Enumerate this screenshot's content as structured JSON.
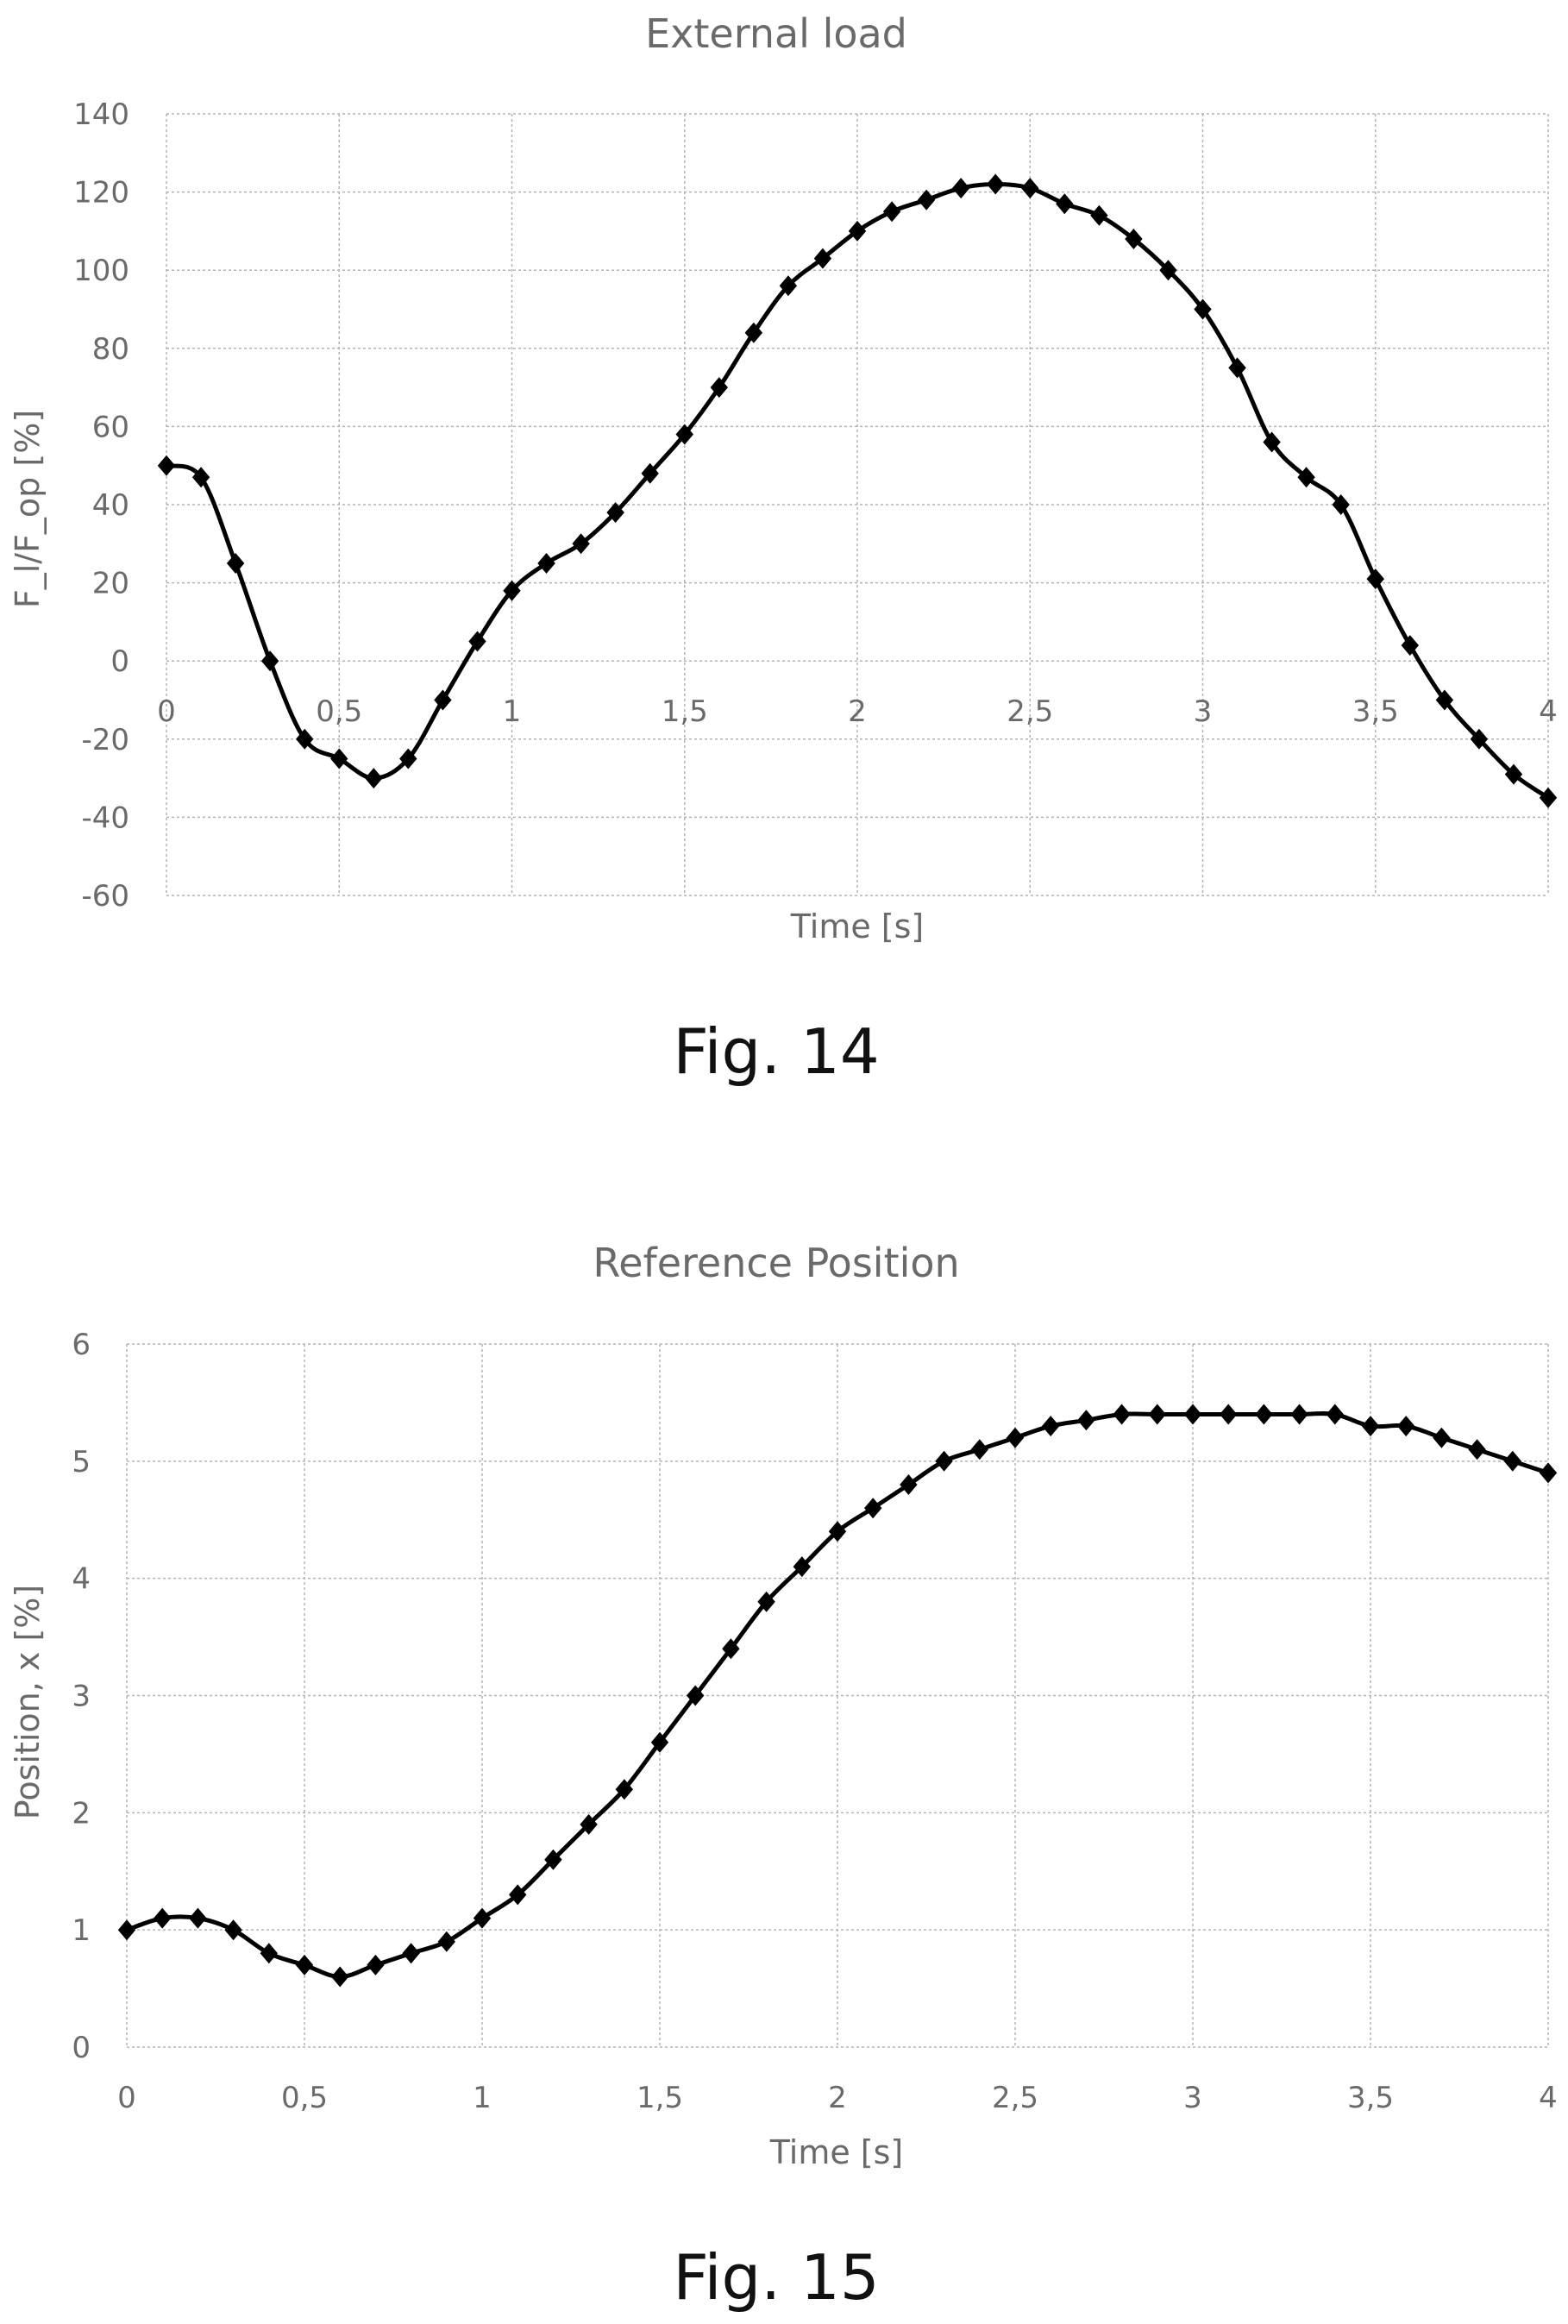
{
  "figures": [
    {
      "caption": "Fig. 14"
    },
    {
      "caption": "Fig. 15"
    }
  ],
  "chart_data": [
    {
      "type": "line",
      "title": "External load",
      "xlabel": "Time [s]",
      "ylabel": "F_l/F_op [%]",
      "xlim": [
        0,
        4
      ],
      "ylim": [
        -60,
        140
      ],
      "x_ticks": [
        0,
        0.5,
        1,
        1.5,
        2,
        2.5,
        3,
        3.5,
        4
      ],
      "x_tick_labels": [
        "0",
        "0,5",
        "1",
        "1,5",
        "2",
        "2,5",
        "3",
        "3,5",
        "4"
      ],
      "y_ticks": [
        -60,
        -40,
        -20,
        0,
        20,
        40,
        60,
        80,
        100,
        120,
        140
      ],
      "y_tick_labels": [
        "-60",
        "-40",
        "-20",
        "0",
        "20",
        "40",
        "60",
        "80",
        "100",
        "120",
        "140"
      ],
      "x_axis_at_y": 0,
      "grid": true,
      "marker": "diamond",
      "series": [
        {
          "x": [
            0,
            0.1,
            0.2,
            0.3,
            0.4,
            0.5,
            0.6,
            0.7,
            0.8,
            0.9,
            1.0,
            1.1,
            1.2,
            1.3,
            1.4,
            1.5,
            1.6,
            1.7,
            1.8,
            1.9,
            2.0,
            2.1,
            2.2,
            2.3,
            2.4,
            2.5,
            2.6,
            2.7,
            2.8,
            2.9,
            3.0,
            3.1,
            3.2,
            3.3,
            3.4,
            3.5,
            3.6,
            3.7,
            3.8,
            3.9,
            4.0
          ],
          "values": [
            50,
            47,
            25,
            0,
            -20,
            -25,
            -30,
            -25,
            -10,
            5,
            18,
            25,
            30,
            38,
            48,
            58,
            70,
            84,
            96,
            103,
            110,
            115,
            118,
            121,
            122,
            121,
            117,
            114,
            108,
            100,
            90,
            75,
            56,
            47,
            40,
            21,
            4,
            -10,
            -20,
            -29,
            -35
          ]
        }
      ]
    },
    {
      "type": "line",
      "title": "Reference Position",
      "xlabel": "Time [s]",
      "ylabel": "Position, x [%]",
      "xlim": [
        0,
        4
      ],
      "ylim": [
        0,
        6
      ],
      "x_ticks": [
        0,
        0.5,
        1,
        1.5,
        2,
        2.5,
        3,
        3.5,
        4
      ],
      "x_tick_labels": [
        "0",
        "0,5",
        "1",
        "1,5",
        "2",
        "2,5",
        "3",
        "3,5",
        "4"
      ],
      "y_ticks": [
        0,
        1,
        2,
        3,
        4,
        5,
        6
      ],
      "y_tick_labels": [
        "0",
        "1",
        "2",
        "3",
        "4",
        "5",
        "6"
      ],
      "grid": true,
      "marker": "diamond",
      "series": [
        {
          "x": [
            0,
            0.1,
            0.2,
            0.3,
            0.4,
            0.5,
            0.6,
            0.7,
            0.8,
            0.9,
            1.0,
            1.1,
            1.2,
            1.3,
            1.4,
            1.5,
            1.6,
            1.7,
            1.8,
            1.9,
            2.0,
            2.1,
            2.2,
            2.3,
            2.4,
            2.5,
            2.6,
            2.7,
            2.8,
            2.9,
            3.0,
            3.1,
            3.2,
            3.3,
            3.4,
            3.5,
            3.6,
            3.7,
            3.8,
            3.9,
            4.0
          ],
          "values": [
            1.0,
            1.1,
            1.1,
            1.0,
            0.8,
            0.7,
            0.6,
            0.7,
            0.8,
            0.9,
            1.1,
            1.3,
            1.6,
            1.9,
            2.2,
            2.6,
            3.0,
            3.4,
            3.8,
            4.1,
            4.4,
            4.6,
            4.8,
            5.0,
            5.1,
            5.2,
            5.3,
            5.35,
            5.4,
            5.4,
            5.4,
            5.4,
            5.4,
            5.4,
            5.4,
            5.3,
            5.3,
            5.2,
            5.1,
            5.0,
            4.9
          ]
        }
      ]
    }
  ]
}
